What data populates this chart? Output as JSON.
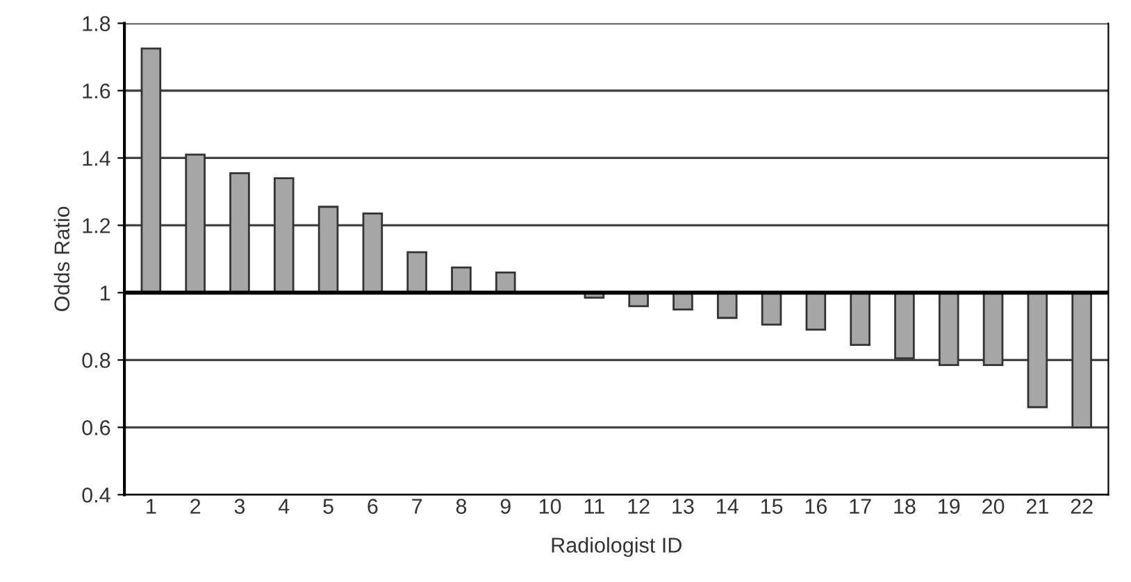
{
  "chart_data": {
    "type": "bar",
    "xlabel": "Radiologist ID",
    "ylabel": "Odds Ratio",
    "categories": [
      "1",
      "2",
      "3",
      "4",
      "5",
      "6",
      "7",
      "8",
      "9",
      "10",
      "11",
      "12",
      "13",
      "14",
      "15",
      "16",
      "17",
      "18",
      "19",
      "20",
      "21",
      "22"
    ],
    "base": [
      1,
      1,
      1,
      1,
      1,
      1,
      1,
      1,
      1,
      null,
      1,
      1,
      1,
      1,
      1,
      1,
      1,
      1,
      1,
      1,
      1,
      1
    ],
    "values": [
      0.725,
      0.41,
      0.355,
      0.34,
      0.255,
      0.235,
      0.12,
      0.075,
      0.06,
      null,
      -0.015,
      -0.04,
      -0.05,
      -0.075,
      -0.095,
      -0.11,
      -0.155,
      -0.195,
      -0.215,
      -0.215,
      -0.34,
      -0.4
    ],
    "color": "#a6a6a6",
    "ylim": [
      0.4,
      1.8
    ],
    "yticks": [
      0.4,
      0.6,
      0.8,
      1,
      1.2,
      1.4,
      1.6,
      1.8
    ],
    "grid": "y",
    "ref_lines": [
      {
        "axis": "y",
        "value": 1,
        "color": "#000000"
      }
    ]
  }
}
